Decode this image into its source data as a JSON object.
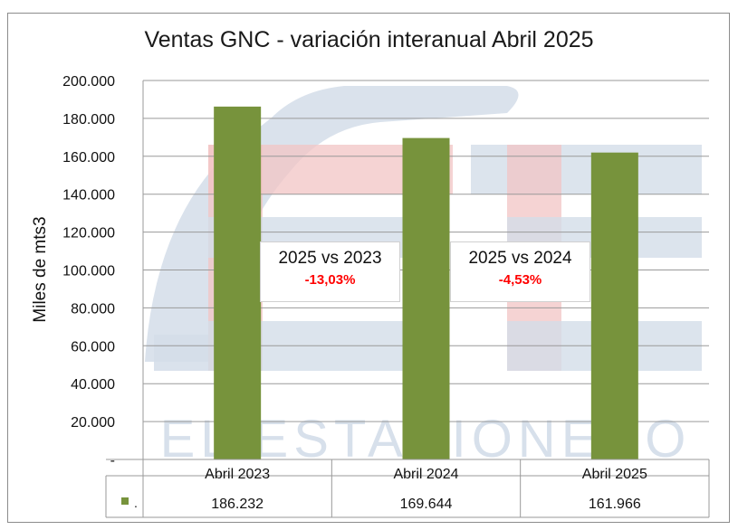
{
  "chart_data": {
    "type": "bar",
    "title": "Ventas GNC - variación interanual Abril 2025",
    "ylabel": "Miles de mts3",
    "xlabel": "",
    "categories": [
      "Abril 2023",
      "Abril 2024",
      "Abril 2025"
    ],
    "series": [
      {
        "name": ".",
        "values": [
          186232,
          169644,
          161966
        ],
        "value_labels": [
          "186.232",
          "169.644",
          "161.966"
        ],
        "color": "#77933c"
      }
    ],
    "ylim": [
      0,
      200000
    ],
    "y_ticks": [
      0,
      20000,
      40000,
      60000,
      80000,
      100000,
      120000,
      140000,
      160000,
      180000,
      200000
    ],
    "y_tick_labels": [
      "-",
      "20.000",
      "40.000",
      "60.000",
      "80.000",
      "100.000",
      "120.000",
      "140.000",
      "160.000",
      "180.000",
      "200.000"
    ],
    "grid": true,
    "data_table": true,
    "annotations": [
      {
        "label": "2025 vs 2023",
        "value": "-13,03%"
      },
      {
        "label": "2025 vs 2024",
        "value": "-4,53%"
      }
    ]
  },
  "colors": {
    "bar": "#77933c",
    "gridline": "#9a9a9a",
    "negative": "#ff0000",
    "watermark_red": "#f2c4c4",
    "watermark_blue": "#d3dde9"
  },
  "watermark": {
    "text": "EL ESTACIONERO",
    "icon": "fuel-pump-logo-icon"
  }
}
